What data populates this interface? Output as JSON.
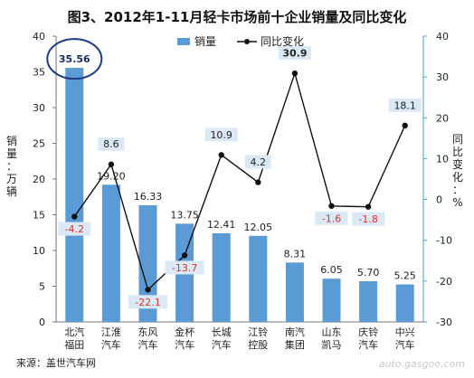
{
  "title": "图3、2012年1-11月轻卡市场前十企业销量及同比变化",
  "source": "来源：盖世汽车网",
  "watermark": "auto.gasgoo.com",
  "colors": {
    "bar": "#5b9bd5",
    "line": "#111111",
    "axis_right": "#4aa3d8",
    "neg_label": "#e0312a",
    "label_box": "#dbe9f6",
    "circle": "#1f3c88"
  },
  "chart_data": {
    "type": "bar+line",
    "categories": [
      "北汽福田",
      "江淮汽车",
      "东风汽车",
      "金杯汽车",
      "长城汽车",
      "江铃控股",
      "南汽集团",
      "山东凯马",
      "庆铃汽车",
      "中兴汽车"
    ],
    "series": [
      {
        "name": "销量",
        "type": "bar",
        "axis": "left",
        "values": [
          35.56,
          19.2,
          16.33,
          13.75,
          12.41,
          12.05,
          8.31,
          6.05,
          5.7,
          5.25
        ],
        "labels": [
          "35.56",
          "19.20",
          "16.33",
          "13.75",
          "12.41",
          "12.05",
          "8.31",
          "6.05",
          "5.70",
          "5.25"
        ]
      },
      {
        "name": "同比变化",
        "type": "line",
        "axis": "right",
        "values": [
          -4.2,
          8.6,
          -22.1,
          -13.7,
          10.9,
          4.2,
          30.9,
          -1.6,
          -1.8,
          18.1
        ],
        "labels": [
          "-4.2",
          "8.6",
          "-22.1",
          "-13.7",
          "10.9",
          "4.2",
          "30.9",
          "-1.6",
          "-1.8",
          "18.1"
        ]
      }
    ],
    "ylabel_left": "销量：万辆",
    "ylabel_right": "同比变化：%",
    "ylim_left": [
      0,
      40
    ],
    "yticks_left": [
      "0",
      "5",
      "10",
      "15",
      "20",
      "25",
      "30",
      "35",
      "40"
    ],
    "ylim_right": [
      -30,
      40
    ],
    "yticks_right": [
      "-30",
      "-20",
      "-10",
      "0",
      "10",
      "20",
      "30",
      "40"
    ],
    "legend_position": "top-center",
    "grid": false,
    "highlight": "北汽福田"
  }
}
